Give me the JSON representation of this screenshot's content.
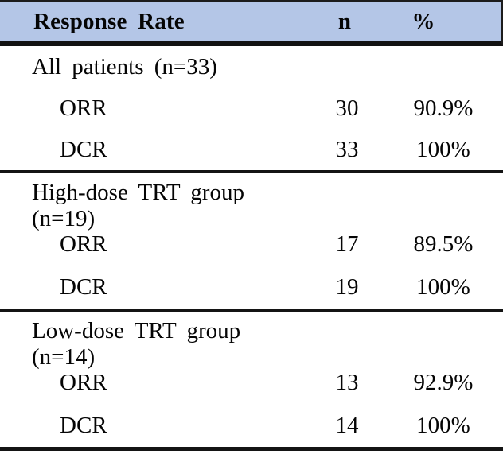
{
  "chart_data": {
    "type": "table",
    "title": "Response Rate",
    "columns": [
      "Response Rate",
      "n",
      "%"
    ],
    "sections": [
      {
        "group": "All patients (n=33)",
        "rows": [
          {
            "measure": "ORR",
            "n": 30,
            "percent": "90.9%"
          },
          {
            "measure": "DCR",
            "n": 33,
            "percent": "100%"
          }
        ]
      },
      {
        "group": "High-dose TRT group (n=19)",
        "rows": [
          {
            "measure": "ORR",
            "n": 17,
            "percent": "89.5%"
          },
          {
            "measure": "DCR",
            "n": 19,
            "percent": "100%"
          }
        ]
      },
      {
        "group": "Low-dose TRT group (n=14)",
        "rows": [
          {
            "measure": "ORR",
            "n": 13,
            "percent": "92.9%"
          },
          {
            "measure": "DCR",
            "n": 14,
            "percent": "100%"
          }
        ]
      }
    ],
    "layout": {
      "header_background": "#b4c6e7",
      "rule_color": "#141414",
      "grid": "horizontal rules only"
    }
  },
  "table": {
    "header": {
      "col1": "Response Rate",
      "col2": "n",
      "col3": "%"
    },
    "sections": [
      {
        "group_label": "All patients (n=33)",
        "rows": [
          {
            "label": "ORR",
            "n": "30",
            "pct": "90.9%"
          },
          {
            "label": "DCR",
            "n": "33",
            "pct": "100%"
          }
        ]
      },
      {
        "group_label": "High-dose TRT group (n=19)",
        "rows": [
          {
            "label": "ORR",
            "n": "17",
            "pct": "89.5%"
          },
          {
            "label": "DCR",
            "n": "19",
            "pct": "100%"
          }
        ]
      },
      {
        "group_label": "Low-dose TRT group (n=14)",
        "rows": [
          {
            "label": "ORR",
            "n": "13",
            "pct": "92.9%"
          },
          {
            "label": "DCR",
            "n": "14",
            "pct": "100%"
          }
        ]
      }
    ],
    "colors": {
      "header_bg": "#b4c6e7",
      "rule": "#141414"
    }
  }
}
